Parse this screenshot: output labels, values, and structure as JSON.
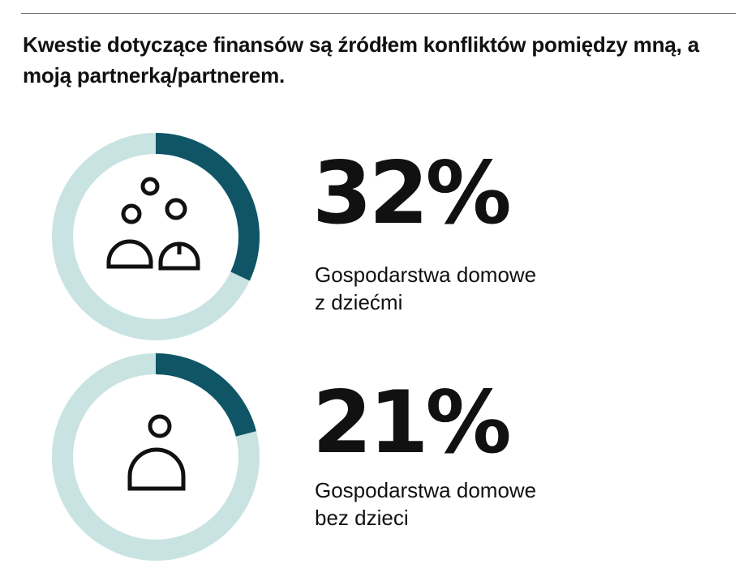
{
  "title": "Kwestie dotyczące finansów są źródłem konfliktów pomiędzy mną, a moją partnerką/partnerem.",
  "colors": {
    "accent": "#0f5566",
    "track": "#c8e3e2",
    "icon": "#111111"
  },
  "chart_data": [
    {
      "type": "pie",
      "style": "donut",
      "value": 32,
      "value_label": "32%",
      "label_lines": [
        "Gospodarstwa domowe",
        "z dziećmi"
      ],
      "icon": "family-icon"
    },
    {
      "type": "pie",
      "style": "donut",
      "value": 21,
      "value_label": "21%",
      "label_lines": [
        "Gospodarstwa domowe",
        "bez dzieci"
      ],
      "icon": "single-person-icon"
    }
  ]
}
